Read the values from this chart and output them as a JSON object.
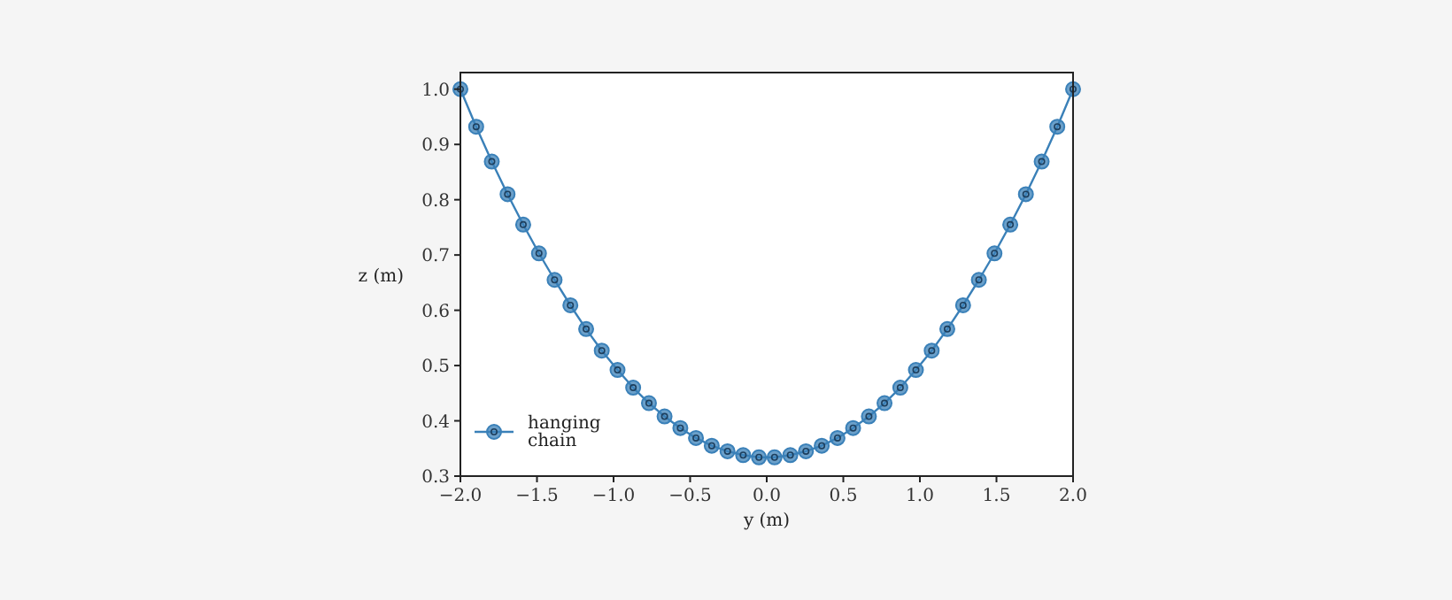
{
  "chart_data": {
    "type": "line",
    "xlabel": "y (m)",
    "ylabel": "z (m)",
    "x": [
      -2,
      -1.897,
      -1.795,
      -1.692,
      -1.59,
      -1.487,
      -1.385,
      -1.282,
      -1.179,
      -1.077,
      -0.974,
      -0.872,
      -0.769,
      -0.667,
      -0.564,
      -0.462,
      -0.359,
      -0.256,
      -0.154,
      -0.051,
      0.051,
      0.154,
      0.256,
      0.359,
      0.462,
      0.564,
      0.667,
      0.769,
      0.872,
      0.974,
      1.077,
      1.179,
      1.282,
      1.385,
      1.487,
      1.59,
      1.692,
      1.795,
      1.897,
      2
    ],
    "series": [
      {
        "name": "hanging\nchain",
        "color": "#3a80b8",
        "values": [
          1.0,
          0.932,
          0.869,
          0.81,
          0.755,
          0.703,
          0.655,
          0.609,
          0.566,
          0.527,
          0.492,
          0.46,
          0.432,
          0.408,
          0.387,
          0.369,
          0.355,
          0.345,
          0.338,
          0.334,
          0.334,
          0.338,
          0.345,
          0.355,
          0.369,
          0.387,
          0.408,
          0.432,
          0.46,
          0.492,
          0.527,
          0.566,
          0.609,
          0.655,
          0.703,
          0.755,
          0.81,
          0.869,
          0.932,
          1.0
        ]
      }
    ],
    "xlim": [
      -2,
      2
    ],
    "xticks": [
      {
        "value": -2,
        "label": "−2.0"
      },
      {
        "value": -1.5,
        "label": "−1.5"
      },
      {
        "value": -1,
        "label": "−1.0"
      },
      {
        "value": -0.5,
        "label": "−0.5"
      },
      {
        "value": 0,
        "label": "0.0"
      },
      {
        "value": 0.5,
        "label": "0.5"
      },
      {
        "value": 1,
        "label": "1.0"
      },
      {
        "value": 1.5,
        "label": "1.5"
      },
      {
        "value": 2,
        "label": "2.0"
      }
    ],
    "ylim": [
      0.3,
      1.03
    ],
    "yticks": [
      {
        "value": 0.3,
        "label": "0.3"
      },
      {
        "value": 0.4,
        "label": "0.4"
      },
      {
        "value": 0.5,
        "label": "0.5"
      },
      {
        "value": 0.6,
        "label": "0.6"
      },
      {
        "value": 0.7,
        "label": "0.7"
      },
      {
        "value": 0.8,
        "label": "0.8"
      },
      {
        "value": 0.9,
        "label": "0.9"
      },
      {
        "value": 1,
        "label": "1.0"
      }
    ],
    "grid": false,
    "legend": "bottom left",
    "marker": "circle",
    "line_style": "solid"
  }
}
